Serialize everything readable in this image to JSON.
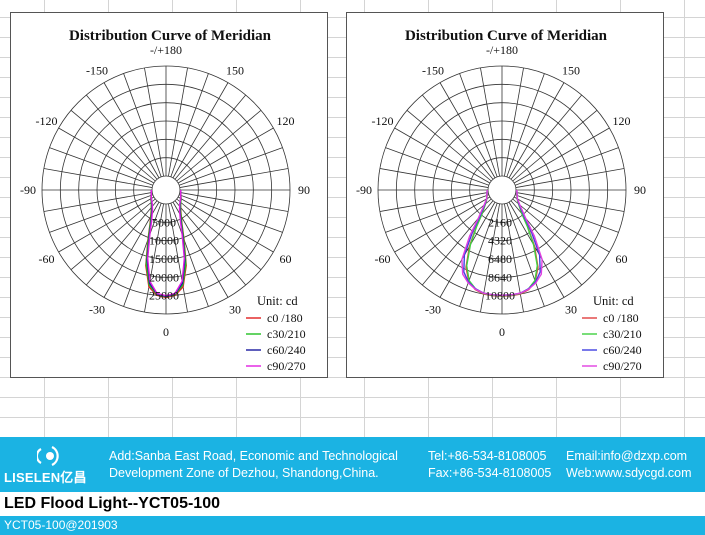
{
  "charts": [
    {
      "title": "Distribution Curve of  Meridian",
      "unit": "Unit: cd",
      "radial_labels": [
        "5000",
        "10000",
        "15000",
        "20000",
        "25000"
      ],
      "angle_labels": {
        "top": "-/+180",
        "m150": "-150",
        "p150": "150",
        "m120": "-120",
        "p120": "120",
        "m90": "-90",
        "p90": "90",
        "m60": "-60",
        "p60": "60",
        "m30": "-30",
        "p30": "30",
        "zero": "0"
      },
      "legend": [
        {
          "label": "c0 /180",
          "color": "#e02020"
        },
        {
          "label": "c30/210",
          "color": "#22c022"
        },
        {
          "label": "c60/240",
          "color": "#1a1aa0"
        },
        {
          "label": "c90/270",
          "color": "#e020e0"
        }
      ]
    },
    {
      "title": "Distribution Curve of  Meridian",
      "unit": "Unit: cd",
      "radial_labels": [
        "2160",
        "4320",
        "6480",
        "8640",
        "10800"
      ],
      "angle_labels": {
        "top": "-/+180",
        "m150": "-150",
        "p150": "150",
        "m120": "-120",
        "p120": "120",
        "m90": "-90",
        "p90": "90",
        "m60": "-60",
        "p60": "60",
        "m30": "-30",
        "p30": "30",
        "zero": "0"
      },
      "legend": [
        {
          "label": "c0 /180",
          "color": "#e04040"
        },
        {
          "label": "c30/210",
          "color": "#40d040"
        },
        {
          "label": "c60/240",
          "color": "#4040e0"
        },
        {
          "label": "c90/270",
          "color": "#e040e0"
        }
      ]
    }
  ],
  "chart_data": [
    {
      "type": "polar",
      "title": "Distribution Curve of  Meridian",
      "unit": "cd",
      "r_ticks": [
        5000,
        10000,
        15000,
        20000,
        25000
      ],
      "r_max": 30000,
      "theta_ticks": [
        -180,
        -150,
        -120,
        -90,
        -60,
        -30,
        0,
        30,
        60,
        90,
        120,
        150,
        180
      ],
      "series": [
        {
          "name": "c0 /180",
          "theta": [
            -90,
            -60,
            -45,
            -35,
            -25,
            -20,
            -15,
            -10,
            -5,
            0,
            5,
            10,
            15,
            20,
            25,
            35,
            45,
            60,
            90
          ],
          "r": [
            200,
            900,
            1800,
            3200,
            6500,
            10500,
            17500,
            23000,
            25000,
            25500,
            25000,
            23000,
            17500,
            10500,
            6500,
            3200,
            1800,
            900,
            200
          ]
        },
        {
          "name": "c30/210",
          "theta": [
            -90,
            -60,
            -45,
            -35,
            -25,
            -20,
            -15,
            -10,
            -5,
            0,
            5,
            10,
            15,
            20,
            25,
            35,
            45,
            60,
            90
          ],
          "r": [
            200,
            900,
            1800,
            3100,
            6300,
            10200,
            17000,
            22500,
            24800,
            25300,
            24800,
            22500,
            17000,
            10200,
            6300,
            3100,
            1800,
            900,
            200
          ]
        },
        {
          "name": "c60/240",
          "theta": [
            -90,
            -60,
            -45,
            -35,
            -25,
            -20,
            -15,
            -10,
            -5,
            0,
            5,
            10,
            15,
            20,
            25,
            35,
            45,
            60,
            90
          ],
          "r": [
            200,
            800,
            1600,
            2800,
            5800,
            9500,
            16000,
            22000,
            24600,
            25200,
            24600,
            22000,
            16000,
            9500,
            5800,
            2800,
            1600,
            800,
            200
          ]
        },
        {
          "name": "c90/270",
          "theta": [
            -90,
            -60,
            -45,
            -35,
            -25,
            -20,
            -15,
            -10,
            -5,
            0,
            5,
            10,
            15,
            20,
            25,
            35,
            45,
            60,
            90
          ],
          "r": [
            200,
            800,
            1500,
            2600,
            5500,
            9000,
            15500,
            21500,
            24500,
            25000,
            24500,
            21500,
            15500,
            9000,
            5500,
            2600,
            1500,
            800,
            200
          ]
        }
      ]
    },
    {
      "type": "polar",
      "title": "Distribution Curve of  Meridian",
      "unit": "cd",
      "r_ticks": [
        2160,
        4320,
        6480,
        8640,
        10800
      ],
      "r_max": 12960,
      "theta_ticks": [
        -180,
        -150,
        -120,
        -90,
        -60,
        -30,
        0,
        30,
        60,
        90,
        120,
        150,
        180
      ],
      "series": [
        {
          "name": "c0 /180",
          "theta": [
            -90,
            -60,
            -50,
            -40,
            -35,
            -30,
            -25,
            -20,
            -15,
            -10,
            -5,
            0,
            5,
            10,
            15,
            20,
            25,
            30,
            35,
            40,
            50,
            60,
            90
          ],
          "r": [
            100,
            400,
            900,
            2000,
            3600,
            6000,
            8400,
            9800,
            10500,
            10800,
            10850,
            10850,
            10850,
            10800,
            10500,
            9800,
            8400,
            6000,
            3600,
            2000,
            900,
            400,
            100
          ]
        },
        {
          "name": "c30/210",
          "theta": [
            -90,
            -60,
            -50,
            -40,
            -35,
            -30,
            -25,
            -20,
            -15,
            -10,
            -5,
            0,
            5,
            10,
            15,
            20,
            25,
            30,
            35,
            40,
            50,
            60,
            90
          ],
          "r": [
            100,
            400,
            900,
            2000,
            3500,
            5800,
            8200,
            9700,
            10400,
            10750,
            10800,
            10800,
            10800,
            10750,
            10400,
            9700,
            8200,
            5800,
            3500,
            2000,
            900,
            400,
            100
          ]
        },
        {
          "name": "c60/240",
          "theta": [
            -90,
            -60,
            -50,
            -40,
            -35,
            -30,
            -25,
            -20,
            -15,
            -10,
            -5,
            0,
            5,
            10,
            15,
            20,
            25,
            30,
            35,
            40,
            50,
            60,
            90
          ],
          "r": [
            100,
            450,
            1000,
            2400,
            4400,
            7200,
            9000,
            9900,
            10400,
            10700,
            10750,
            10750,
            10750,
            10700,
            10400,
            9900,
            9000,
            7200,
            4400,
            2400,
            1000,
            450,
            100
          ]
        },
        {
          "name": "c90/270",
          "theta": [
            -90,
            -60,
            -50,
            -40,
            -35,
            -30,
            -25,
            -20,
            -15,
            -10,
            -5,
            0,
            5,
            10,
            15,
            20,
            25,
            30,
            35,
            40,
            50,
            60,
            90
          ],
          "r": [
            100,
            450,
            1100,
            2700,
            5000,
            7800,
            9300,
            10000,
            10450,
            10700,
            10750,
            10750,
            10750,
            10700,
            10450,
            10000,
            9300,
            7800,
            5000,
            2700,
            1100,
            450,
            100
          ]
        }
      ]
    }
  ],
  "footer": {
    "brand": "LISELEN亿昌",
    "address_line1": "Add:Sanba East Road, Economic and Technological",
    "address_line2": "Development Zone of Dezhou, Shandong,China.",
    "tel": "Tel:+86-534-8108005",
    "fax": "Fax:+86-534-8108005",
    "email": "Email:info@dzxp.com",
    "web": "Web:www.sdycgd.com",
    "accent": "#1bb3e3"
  },
  "product_title": "LED Flood Light--YCT05-100",
  "product_code": "YCT05-100@201903"
}
